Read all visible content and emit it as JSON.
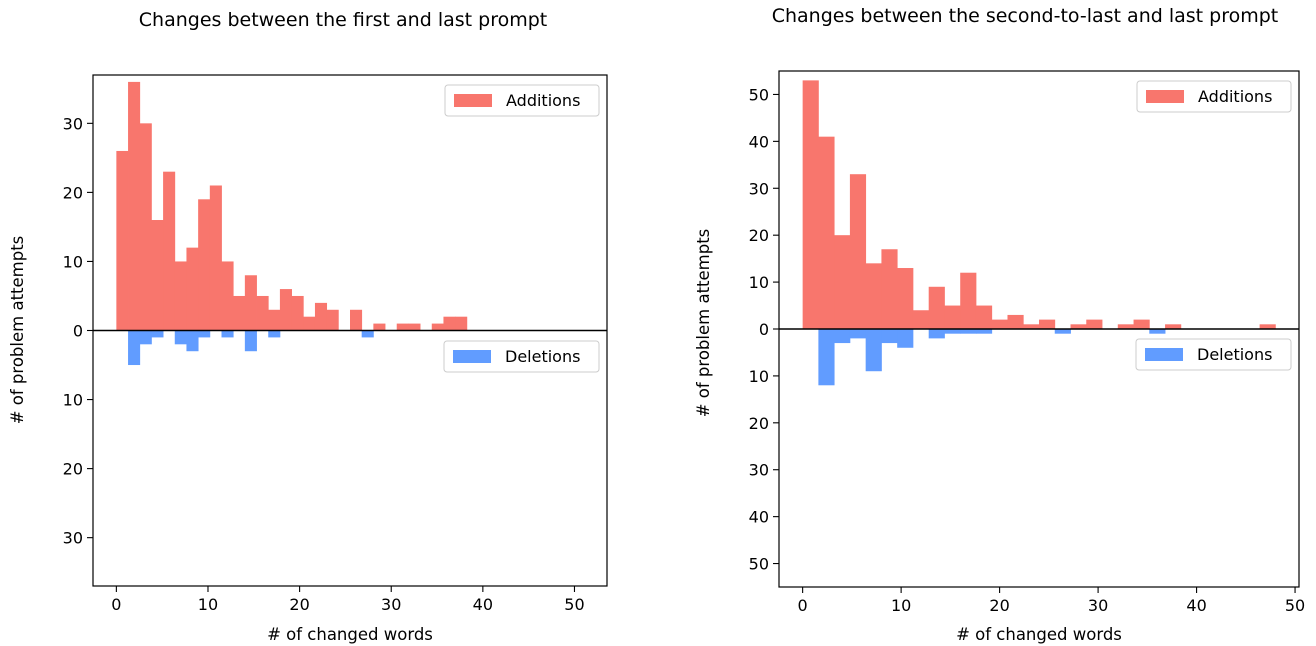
{
  "chart_data": [
    {
      "type": "bar",
      "title": "Changes between the first and last prompt",
      "xlabel": "# of changed words",
      "ylabel": "# of problem attempts",
      "xlim": [
        -2.55,
        53.55
      ],
      "ylim": [
        -37,
        37
      ],
      "x_ticks": [
        0,
        10,
        20,
        30,
        40,
        50
      ],
      "y_ticks": [
        {
          "value": 30,
          "label": "30"
        },
        {
          "value": 20,
          "label": "20"
        },
        {
          "value": 10,
          "label": "10"
        },
        {
          "value": 0,
          "label": "0"
        },
        {
          "value": -10,
          "label": "10"
        },
        {
          "value": -20,
          "label": "20"
        },
        {
          "value": -30,
          "label": "30"
        }
      ],
      "bin_width": 1.275,
      "bin_start": 0,
      "grid": false,
      "series": [
        {
          "name": "Additions",
          "color": "#f8766d",
          "direction": "up",
          "legend_position": "upper right",
          "values": [
            26,
            36,
            30,
            16,
            23,
            10,
            12,
            19,
            21,
            10,
            5,
            8,
            5,
            3,
            6,
            5,
            2,
            4,
            3,
            0,
            3,
            0,
            1,
            0,
            1,
            1,
            0,
            1,
            2,
            2
          ]
        },
        {
          "name": "Deletions",
          "color": "#619cff",
          "direction": "down",
          "legend_position": "upper right of lower half",
          "values": [
            0,
            5,
            2,
            1,
            0,
            2,
            3,
            1,
            0,
            1,
            0,
            3,
            0,
            1,
            0,
            0,
            0,
            0,
            0,
            0,
            0,
            1,
            0,
            0,
            0,
            0,
            0,
            0,
            0,
            0,
            0,
            0,
            0,
            0,
            0,
            0,
            0,
            0,
            0,
            0
          ]
        }
      ]
    },
    {
      "type": "bar",
      "title": "Changes between the second-to-last and last prompt",
      "xlabel": "# of changed words",
      "ylabel": "# of problem attempts",
      "xlim": [
        -2.4,
        50.4
      ],
      "ylim": [
        -55,
        55
      ],
      "x_ticks": [
        0,
        10,
        20,
        30,
        40,
        50
      ],
      "y_ticks": [
        {
          "value": 50,
          "label": "50"
        },
        {
          "value": 40,
          "label": "40"
        },
        {
          "value": 30,
          "label": "30"
        },
        {
          "value": 20,
          "label": "20"
        },
        {
          "value": 10,
          "label": "10"
        },
        {
          "value": 0,
          "label": "0"
        },
        {
          "value": -10,
          "label": "10"
        },
        {
          "value": -20,
          "label": "20"
        },
        {
          "value": -30,
          "label": "30"
        },
        {
          "value": -40,
          "label": "40"
        },
        {
          "value": -50,
          "label": "50"
        }
      ],
      "bin_width": 1.6,
      "bin_start": 0,
      "grid": false,
      "series": [
        {
          "name": "Additions",
          "color": "#f8766d",
          "direction": "up",
          "legend_position": "upper right",
          "values": [
            53,
            41,
            20,
            33,
            14,
            17,
            13,
            4,
            9,
            5,
            12,
            5,
            2,
            3,
            1,
            2,
            0,
            1,
            2,
            0,
            1,
            2,
            0,
            1,
            0,
            0,
            0,
            0,
            0,
            1
          ]
        },
        {
          "name": "Deletions",
          "color": "#619cff",
          "direction": "down",
          "legend_position": "upper right of lower half",
          "values": [
            0,
            12,
            3,
            2,
            9,
            3,
            4,
            0,
            2,
            1,
            1,
            1,
            0,
            0,
            0,
            0,
            1,
            0,
            0,
            0,
            0,
            0,
            1,
            0,
            0,
            0,
            0,
            0,
            0,
            0
          ]
        }
      ]
    }
  ]
}
